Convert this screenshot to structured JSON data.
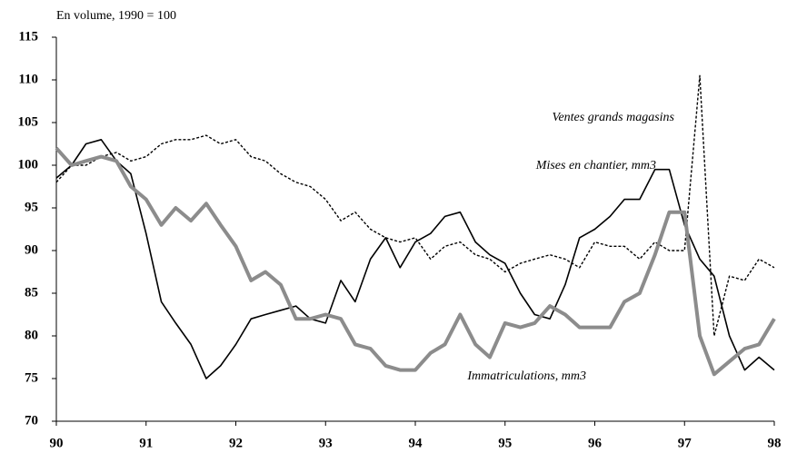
{
  "chart_data": {
    "type": "line",
    "title": "En volume, 1990 = 100",
    "x": [
      90,
      90.17,
      90.33,
      90.5,
      90.67,
      90.83,
      91,
      91.17,
      91.33,
      91.5,
      91.67,
      91.83,
      92,
      92.17,
      92.33,
      92.5,
      92.67,
      92.83,
      93,
      93.17,
      93.33,
      93.5,
      93.67,
      93.83,
      94,
      94.17,
      94.33,
      94.5,
      94.67,
      94.83,
      95,
      95.17,
      95.33,
      95.5,
      95.67,
      95.83,
      96,
      96.17,
      96.33,
      96.5,
      96.67,
      96.83,
      97,
      97.17,
      97.33,
      97.5,
      97.67,
      97.83,
      98
    ],
    "series": [
      {
        "name": "Mises en chantier, mm3",
        "color": "#000000",
        "linestyle": "solid",
        "values": [
          98.5,
          100,
          102.5,
          103,
          100.5,
          99,
          92,
          84,
          81.5,
          79,
          75,
          76.5,
          79,
          82,
          82.5,
          83,
          83.5,
          82,
          81.5,
          86.5,
          84,
          89,
          91.5,
          88,
          91,
          92,
          94,
          94.5,
          91,
          89.5,
          88.5,
          85,
          82.5,
          82,
          86,
          91.5,
          92.5,
          94,
          96,
          96,
          99.5,
          99.5,
          93,
          89,
          87,
          80,
          76,
          77.5,
          76
        ]
      },
      {
        "name": "Ventes grands magasins",
        "color": "#000000",
        "linestyle": "dashed",
        "values": [
          98,
          100,
          100,
          101,
          101.5,
          100.5,
          101,
          102.5,
          103,
          103,
          103.5,
          102.5,
          103,
          101,
          100.5,
          99,
          98,
          97.5,
          96,
          93.5,
          94.5,
          92.5,
          91.5,
          91,
          91.5,
          89,
          90.5,
          91,
          89.5,
          89,
          87.5,
          88.5,
          89,
          89.5,
          89,
          88,
          91,
          90.5,
          90.5,
          89,
          91,
          90,
          90,
          110.5,
          80,
          87,
          86.5,
          89,
          88
        ]
      },
      {
        "name": "Immatriculations, mm3",
        "color": "#8c8c8c",
        "linestyle": "thick",
        "values": [
          102,
          100,
          100.5,
          101,
          100.5,
          97.5,
          96,
          93,
          95,
          93.5,
          95.5,
          93,
          90.5,
          86.5,
          87.5,
          86,
          82,
          82,
          82.5,
          82,
          79,
          78.5,
          76.5,
          76,
          76,
          78,
          79,
          82.5,
          79,
          77.5,
          81.5,
          81,
          81.5,
          83.5,
          82.5,
          81,
          81,
          81,
          84,
          85,
          89.5,
          94.5,
          94.5,
          80,
          75.5,
          77,
          78.5,
          79,
          82
        ]
      }
    ],
    "xlim": [
      90,
      98
    ],
    "xticks": [
      90,
      91,
      92,
      93,
      94,
      95,
      96,
      97,
      98
    ],
    "ylim": [
      70,
      115
    ],
    "yticks": [
      70,
      75,
      80,
      85,
      90,
      95,
      100,
      105,
      110,
      115
    ]
  }
}
